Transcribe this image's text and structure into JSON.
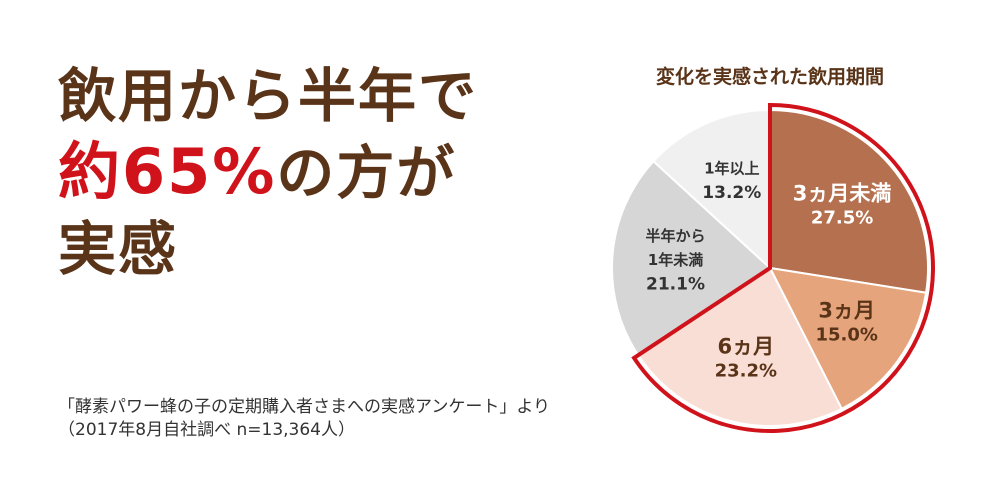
{
  "headline": {
    "line1": "飲用から半年で",
    "line2_accent": "約65%",
    "line2_rest": "の方が",
    "line3": "実感"
  },
  "note": {
    "line1": "「酵素パワー蜂の子の定期購入者さまへの実感アンケート」より",
    "line2": "（2017年8月自社調べ  n=13,364人）"
  },
  "colors": {
    "headline": "#5a3418",
    "accent": "#d0121b",
    "highlight_outline": "#d0121b"
  },
  "chart_data": {
    "type": "pie",
    "title": "変化を実感された飲用期間",
    "unit": "%",
    "slices": [
      {
        "lines": [
          "3ヵ月未満"
        ],
        "value": 27.5,
        "value_label": "27.5%",
        "color": "#b5714f",
        "text_color": "#ffffff",
        "highlighted": true
      },
      {
        "lines": [
          "3ヵ月"
        ],
        "value": 15.0,
        "value_label": "15.0%",
        "color": "#e5a47c",
        "text_color": "#5a3418",
        "highlighted": true
      },
      {
        "lines": [
          "6ヵ月"
        ],
        "value": 23.2,
        "value_label": "23.2%",
        "color": "#f9ded5",
        "text_color": "#5a3418",
        "highlighted": true
      },
      {
        "lines": [
          "半年から",
          "1年未満"
        ],
        "value": 21.1,
        "value_label": "21.1%",
        "color": "#d6d6d6",
        "text_color": "#333333",
        "highlighted": false
      },
      {
        "lines": [
          "1年以上"
        ],
        "value": 13.2,
        "value_label": "13.2%",
        "color": "#f0f0f0",
        "text_color": "#333333",
        "highlighted": false
      }
    ]
  }
}
